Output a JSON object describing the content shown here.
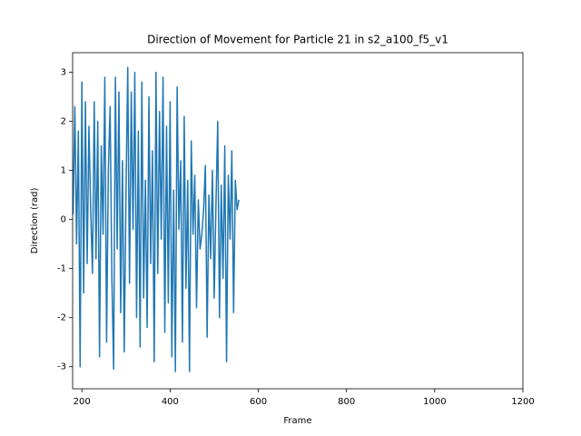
{
  "chart_data": {
    "type": "line",
    "title": "Direction of Movement for Particle 21 in s2_a100_f5_v1",
    "x_label": "Frame",
    "y_label": "Direction (rad)",
    "x": [
      180,
      184,
      188,
      192,
      196,
      200,
      204,
      208,
      212,
      216,
      220,
      224,
      228,
      232,
      236,
      240,
      244,
      248,
      252,
      256,
      260,
      264,
      268,
      272,
      276,
      280,
      284,
      288,
      292,
      296,
      300,
      304,
      308,
      312,
      316,
      320,
      324,
      328,
      332,
      336,
      340,
      344,
      348,
      352,
      356,
      360,
      364,
      368,
      372,
      376,
      380,
      384,
      388,
      392,
      396,
      400,
      404,
      408,
      412,
      416,
      420,
      424,
      428,
      432,
      436,
      440,
      444,
      448,
      452,
      456,
      460,
      464,
      468,
      472,
      476,
      480,
      484,
      488,
      492,
      496,
      500,
      504,
      508,
      512,
      516,
      520,
      524,
      528,
      532,
      536,
      540,
      544,
      548,
      552,
      556
    ],
    "series": [
      {
        "name": "direction",
        "color": "#1f77b4",
        "values": [
          0.1,
          2.3,
          -0.5,
          1.8,
          -3.0,
          2.8,
          -1.5,
          2.4,
          -0.9,
          1.9,
          0.2,
          -1.1,
          2.4,
          -0.8,
          2.0,
          -2.8,
          1.5,
          -0.3,
          2.9,
          -2.5,
          1.0,
          2.3,
          -1.2,
          -3.05,
          2.9,
          -0.6,
          2.6,
          -1.9,
          1.2,
          -2.7,
          0.5,
          3.1,
          -1.3,
          2.6,
          -0.2,
          3.0,
          -2.0,
          1.8,
          -2.6,
          2.8,
          -1.6,
          0.8,
          -2.2,
          2.5,
          -0.9,
          1.4,
          -2.9,
          3.0,
          -1.1,
          2.2,
          -0.4,
          2.9,
          -2.3,
          1.9,
          -1.7,
          2.4,
          -2.8,
          0.6,
          -3.1,
          2.7,
          -0.2,
          1.2,
          -2.5,
          2.1,
          -1.4,
          0.8,
          -3.1,
          1.6,
          -0.3,
          0.9,
          -1.8,
          0.4,
          -0.6,
          -0.3,
          0.2,
          1.1,
          -2.4,
          0.5,
          -0.8,
          1.0,
          -1.6,
          0.3,
          2.0,
          -2.0,
          0.7,
          -1.2,
          1.5,
          -2.9,
          0.9,
          -0.4,
          1.4,
          -1.9,
          0.8,
          0.2,
          0.4
        ]
      }
    ],
    "xlim": [
      179,
      1200
    ],
    "ylim": [
      -3.45,
      3.4
    ],
    "xticks": [
      200,
      400,
      600,
      800,
      1000,
      1200
    ],
    "yticks": [
      -3,
      -2,
      -1,
      0,
      1,
      2,
      3
    ]
  }
}
